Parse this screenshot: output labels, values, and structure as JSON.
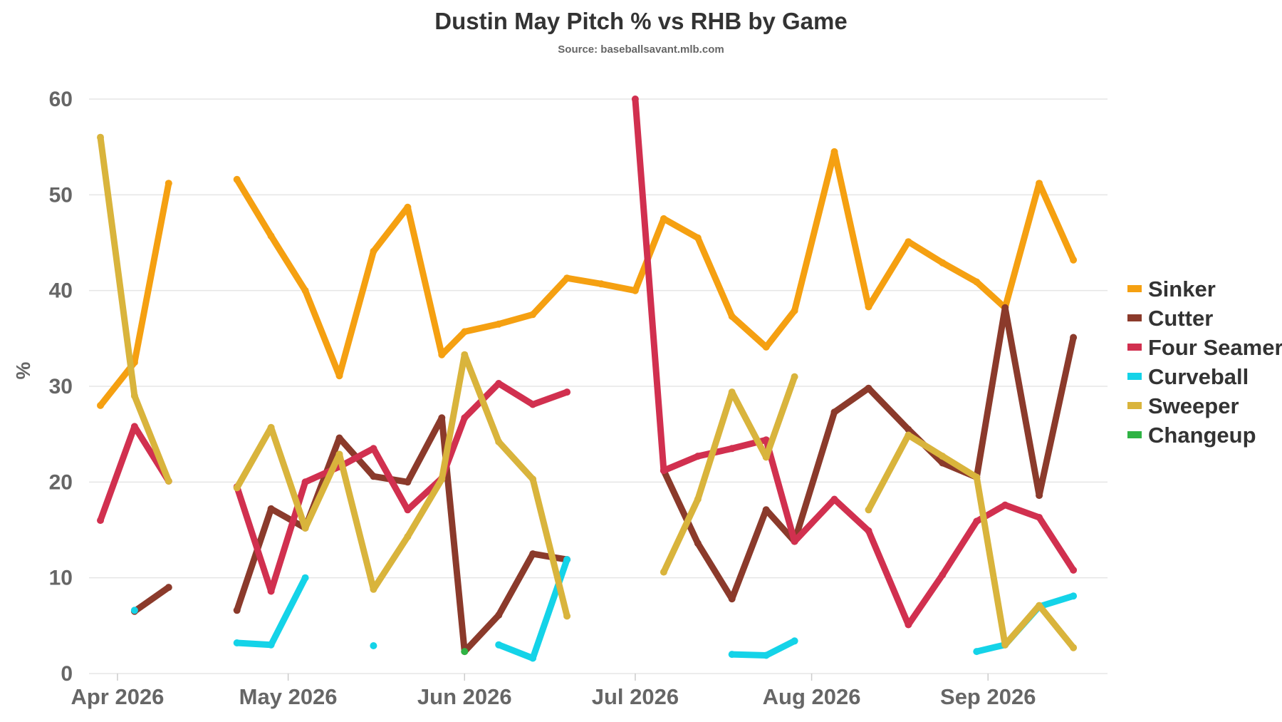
{
  "chart_data": {
    "type": "line",
    "title": "Dustin May Pitch % vs RHB by Game",
    "subtitle": "Source: baseballsavant.mlb.com",
    "xlabel": "",
    "ylabel": "%",
    "ylim": [
      0,
      60
    ],
    "yticks": [
      0,
      10,
      20,
      30,
      40,
      50,
      60
    ],
    "xlim": [
      "2026-03-27",
      "2026-09-22"
    ],
    "xticks": [
      {
        "date": "2026-04-01",
        "label": "Apr 2026"
      },
      {
        "date": "2026-05-01",
        "label": "May 2026"
      },
      {
        "date": "2026-06-01",
        "label": "Jun 2026"
      },
      {
        "date": "2026-07-01",
        "label": "Jul 2026"
      },
      {
        "date": "2026-08-01",
        "label": "Aug 2026"
      },
      {
        "date": "2026-09-01",
        "label": "Sep 2026"
      }
    ],
    "grid": true,
    "legend_position": "right",
    "x": [
      "2026-03-29",
      "2026-04-04",
      "2026-04-10",
      "2026-04-16",
      "2026-04-22",
      "2026-04-28",
      "2026-05-04",
      "2026-05-10",
      "2026-05-16",
      "2026-05-22",
      "2026-05-28",
      "2026-06-01",
      "2026-06-07",
      "2026-06-13",
      "2026-06-19",
      "2026-06-25",
      "2026-07-01",
      "2026-07-06",
      "2026-07-12",
      "2026-07-18",
      "2026-07-24",
      "2026-07-29",
      "2026-08-05",
      "2026-08-11",
      "2026-08-18",
      "2026-08-24",
      "2026-08-30",
      "2026-09-04",
      "2026-09-10",
      "2026-09-16",
      "2026-09-22"
    ],
    "series": [
      {
        "name": "Sinker",
        "color": "#f5a011",
        "values": [
          28,
          32.5,
          51.2,
          null,
          51.6,
          45.7,
          40,
          31.1,
          44.1,
          48.7,
          33.3,
          35.7,
          36.5,
          37.5,
          41.3,
          40.7,
          40,
          47.5,
          45.5,
          37.3,
          34.1,
          37.9,
          54.5,
          38.3,
          45.1,
          42.9,
          40.9,
          38.2,
          51.2,
          43.2,
          null
        ]
      },
      {
        "name": "Cutter",
        "color": "#8b3a2b",
        "values": [
          null,
          6.5,
          9,
          null,
          6.6,
          17.2,
          15.2,
          24.6,
          20.6,
          20,
          26.7,
          2.3,
          6.1,
          12.5,
          11.9,
          null,
          null,
          21.2,
          13.6,
          7.8,
          17.1,
          13.8,
          27.3,
          29.8,
          25.5,
          22,
          20.5,
          38.2,
          18.6,
          35.1,
          null
        ]
      },
      {
        "name": "Four Seamer",
        "color": "#d1304f",
        "values": [
          16,
          25.8,
          20.1,
          null,
          19.5,
          8.6,
          20,
          21.6,
          23.5,
          17.1,
          20.4,
          26.7,
          30.3,
          28.1,
          29.4,
          null,
          60,
          21.2,
          22.7,
          23.5,
          24.4,
          13.8,
          18.2,
          14.9,
          5.1,
          10.3,
          15.9,
          17.6,
          16.3,
          10.8,
          null
        ]
      },
      {
        "name": "Curveball",
        "color": "#14d3e8",
        "values": [
          null,
          6.6,
          null,
          null,
          3.2,
          3,
          10,
          null,
          2.9,
          null,
          null,
          null,
          3,
          1.6,
          11.9,
          null,
          null,
          null,
          null,
          2,
          1.9,
          3.4,
          null,
          null,
          null,
          null,
          2.3,
          3,
          7,
          8.1,
          null
        ]
      },
      {
        "name": "Sweeper",
        "color": "#d9b43c",
        "values": [
          56,
          29,
          20.1,
          null,
          19.4,
          25.7,
          15.2,
          22.9,
          8.8,
          14.3,
          20.3,
          33.3,
          24.2,
          20.3,
          6,
          null,
          null,
          10.6,
          18.2,
          29.4,
          22.6,
          31,
          null,
          17.1,
          24.9,
          22.7,
          20.5,
          3,
          7.1,
          2.7,
          null
        ]
      },
      {
        "name": "Changeup",
        "color": "#2fb344",
        "values": [
          null,
          null,
          null,
          null,
          null,
          null,
          null,
          null,
          null,
          null,
          null,
          2.3,
          null,
          null,
          null,
          null,
          null,
          null,
          null,
          null,
          null,
          null,
          null,
          null,
          null,
          null,
          null,
          null,
          null,
          null,
          null
        ]
      }
    ]
  }
}
